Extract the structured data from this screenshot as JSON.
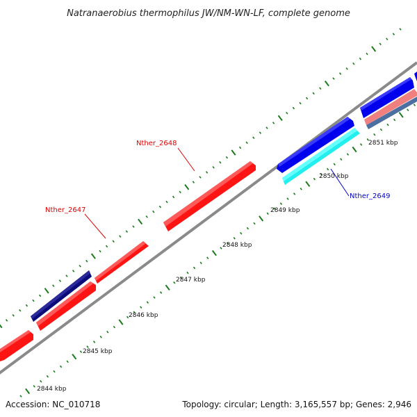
{
  "title": "Natranaerobius thermophilus JW/NM-WN-LF, complete genome",
  "footer": {
    "accession": "Accession: NC_010718",
    "topology": "Topology: circular; Length: 3,165,557 bp; Genes: 2,946"
  },
  "scale_labels": [
    "2844 kbp",
    "2845 kbp",
    "2846 kbp",
    "2847 kbp",
    "2848 kbp",
    "2849 kbp",
    "2850 kbp",
    "2851 kbp"
  ],
  "gene_labels": [
    {
      "name": "Nther_2647",
      "color": "#dd0000"
    },
    {
      "name": "Nther_2648",
      "color": "#dd0000"
    },
    {
      "name": "Nther_2649",
      "color": "#0000cc"
    }
  ],
  "colors": {
    "backbone": "#8a8a8a",
    "tick": "#1a7a1a",
    "forward_gene": "#0000ee",
    "forward_gene_dark": "#0b0b7a",
    "reverse_gene": "#ff1414",
    "cyan_gene": "#22eeee",
    "pink_gene": "#f08080",
    "steel_gene": "#4a6fa0"
  }
}
